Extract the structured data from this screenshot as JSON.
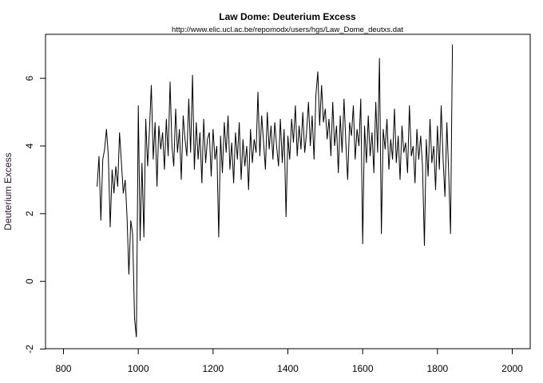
{
  "chart_data": {
    "type": "line",
    "title": "Law Dome: Deuterium Excess",
    "subtitle": "http://www.elic.ucl.ac.be/repomodx/users/hgs/Law_Dome_deutxs.dat",
    "xlabel": "",
    "ylabel": "Deuterium Excess",
    "xlim": [
      752,
      2048
    ],
    "ylim": [
      -1.99,
      7.3
    ],
    "x_ticks": [
      800,
      1000,
      1200,
      1400,
      1600,
      1800,
      2000
    ],
    "x_tick_labels": [
      "800",
      "1000",
      "1200",
      "1400",
      "1600",
      "1800",
      "2000"
    ],
    "y_ticks": [
      -2,
      0,
      2,
      4,
      6
    ],
    "y_tick_labels": [
      "-2",
      "0",
      "2",
      "4",
      "6"
    ],
    "grid": false,
    "line_color": "#000000",
    "series": [
      {
        "name": "Deuterium Excess",
        "x_start": 890,
        "x_step": 5,
        "values": [
          2.8,
          3.7,
          1.8,
          3.6,
          3.9,
          4.5,
          3.7,
          1.6,
          3.3,
          2.6,
          3.4,
          2.8,
          4.4,
          3.5,
          2.6,
          3.0,
          1.9,
          0.2,
          1.8,
          1.4,
          -1.1,
          -1.65,
          5.2,
          1.2,
          3.5,
          1.3,
          4.8,
          3.4,
          4.5,
          5.8,
          3.6,
          4.7,
          2.8,
          4.6,
          3.9,
          4.4,
          3.3,
          4.8,
          3.7,
          5.9,
          4.0,
          3.4,
          5.1,
          3.8,
          4.5,
          3.0,
          4.9,
          4.2,
          3.7,
          5.4,
          3.8,
          6.1,
          3.3,
          4.7,
          3.6,
          4.4,
          2.9,
          4.8,
          3.5,
          4.2,
          4.4,
          3.1,
          4.5,
          3.6,
          4.0,
          1.3,
          4.3,
          3.2,
          4.7,
          3.8,
          4.9,
          3.3,
          4.1,
          2.9,
          4.4,
          3.6,
          4.7,
          3.0,
          4.2,
          3.4,
          4.0,
          2.7,
          4.5,
          3.5,
          4.2,
          3.8,
          5.6,
          3.7,
          4.9,
          4.1,
          3.3,
          5.0,
          3.9,
          4.6,
          3.6,
          4.7,
          4.0,
          3.4,
          4.8,
          3.5,
          4.5,
          1.9,
          4.3,
          3.6,
          4.8,
          4.1,
          5.2,
          3.7,
          4.6,
          3.9,
          5.0,
          3.8,
          4.4,
          5.3,
          4.0,
          4.9,
          3.6,
          5.5,
          6.2,
          4.6,
          5.8,
          4.7,
          5.1,
          4.2,
          4.8,
          3.7,
          5.3,
          4.0,
          4.6,
          3.2,
          4.9,
          3.8,
          5.4,
          4.1,
          3.0,
          4.7,
          4.3,
          5.2,
          3.6,
          4.5,
          4.0,
          5.4,
          1.1,
          4.6,
          3.5,
          4.9,
          3.7,
          4.4,
          3.2,
          5.3,
          3.8,
          6.6,
          1.4,
          4.5,
          3.9,
          4.8,
          3.3,
          4.2,
          3.6,
          5.1,
          3.5,
          4.3,
          3.0,
          4.6,
          3.8,
          4.1,
          3.2,
          5.2,
          3.7,
          4.0,
          2.9,
          4.5,
          3.6,
          4.3,
          3.4,
          1.05,
          4.2,
          3.1,
          4.8,
          3.5,
          4.0,
          2.7,
          4.6,
          3.3,
          5.2,
          3.6,
          2.5,
          4.7,
          3.2,
          1.4,
          7.0
        ]
      }
    ]
  }
}
